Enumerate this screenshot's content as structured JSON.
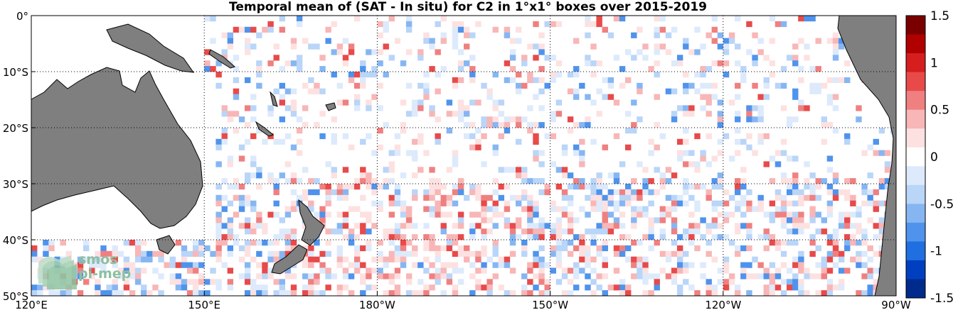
{
  "title": "Temporal mean of (SAT - In situ) for C2 in 1°x1° boxes over 2015-2019",
  "map": {
    "lon_range": [
      120,
      270
    ],
    "lat_range": [
      -50,
      0
    ],
    "x_ticks": [
      {
        "lon": 120,
        "label": "120°E"
      },
      {
        "lon": 150,
        "label": "150°E"
      },
      {
        "lon": 180,
        "label": "180°W"
      },
      {
        "lon": 210,
        "label": "150°W"
      },
      {
        "lon": 240,
        "label": "120°W"
      },
      {
        "lon": 270,
        "label": "90°W"
      }
    ],
    "y_ticks": [
      {
        "lat": 0,
        "label": "0°"
      },
      {
        "lat": -10,
        "label": "10°S"
      },
      {
        "lat": -20,
        "label": "20°S"
      },
      {
        "lat": -30,
        "label": "30°S"
      },
      {
        "lat": -40,
        "label": "40°S"
      },
      {
        "lat": -50,
        "label": "50°S"
      }
    ],
    "land_color": "#7f7f7f",
    "ocean_color": "#ffffff",
    "gridlines": "dotted"
  },
  "colorbar": {
    "range": [
      -1.5,
      1.5
    ],
    "ticks": [
      "1.5",
      "1",
      "0.5",
      "0",
      "-0.5",
      "-1",
      "-1.5"
    ],
    "colors": [
      "#002a8c",
      "#0040c0",
      "#1f6fe0",
      "#4f93ec",
      "#86b6f2",
      "#b9d5f8",
      "#ddeafc",
      "#ffffff",
      "#fde1e1",
      "#f8b6b6",
      "#f08080",
      "#e84a4a",
      "#d61e1e",
      "#b00000",
      "#7a0000"
    ]
  },
  "logo": {
    "line1": "smos",
    "line2": "pi-mep"
  }
}
